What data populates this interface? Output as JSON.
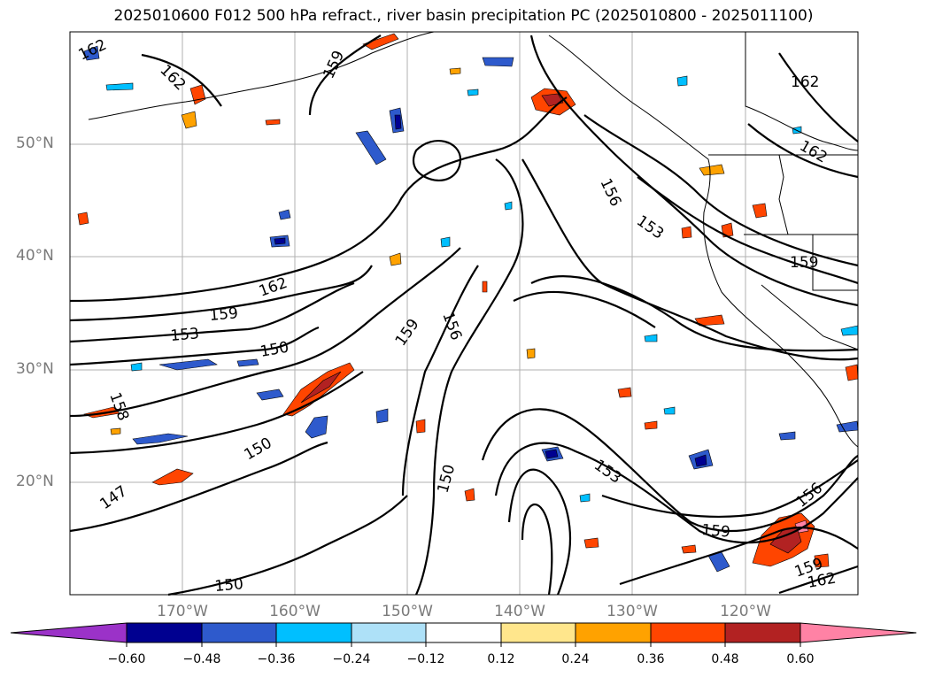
{
  "title": "2025010600 F012 500 hPa refract., river basin precipitation PC (2025010800 - 2025011100)",
  "lat_labels": [
    "50°N",
    "40°N",
    "30°N",
    "20°N"
  ],
  "lon_labels": [
    "170°W",
    "160°W",
    "150°W",
    "140°W",
    "130°W",
    "120°W"
  ],
  "contour_labels": [
    "162",
    "162",
    "159",
    "162",
    "156",
    "153",
    "159",
    "162",
    "159",
    "153",
    "150",
    "156",
    "159",
    "158",
    "150",
    "147",
    "150",
    "153",
    "159",
    "150",
    "156",
    "162",
    "159",
    "162"
  ],
  "colorbar": {
    "ticks": [
      "−0.60",
      "−0.48",
      "−0.36",
      "−0.24",
      "−0.12",
      "0.12",
      "0.24",
      "0.36",
      "0.48",
      "0.60"
    ],
    "colors": [
      "#9b32c8",
      "#000090",
      "#2e5acc",
      "#00bfff",
      "#aee1f8",
      "#ffffff",
      "#ffe68c",
      "#ffa200",
      "#ff4500",
      "#b22222",
      "#ff82a5"
    ]
  },
  "chart_data": {
    "type": "map",
    "fields": [
      "500 hPa refractivity contours",
      "river basin precipitation PC (shaded)"
    ],
    "lat_range": [
      10,
      60
    ],
    "lon_range": [
      -180,
      -110
    ],
    "contour_levels_labeled": [
      147,
      150,
      153,
      156,
      158,
      159,
      162
    ],
    "shading_levels": [
      -0.6,
      -0.48,
      -0.36,
      -0.24,
      -0.12,
      0.12,
      0.24,
      0.36,
      0.48,
      0.6
    ],
    "grid": true
  }
}
